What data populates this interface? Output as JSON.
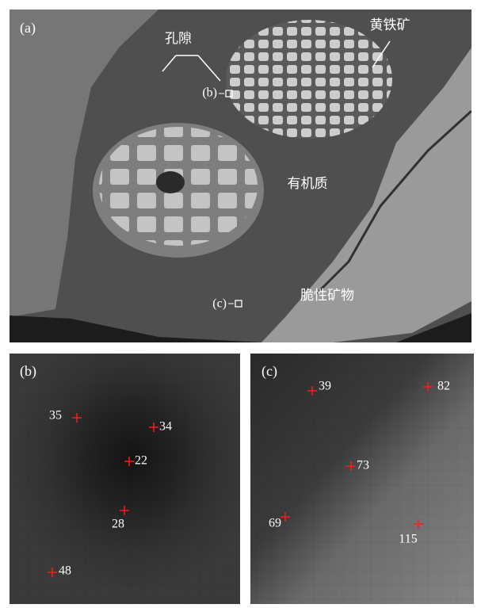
{
  "panels": [
    {
      "label": "(a)",
      "annotations": [
        "孔隙",
        "黄铁矿",
        "有机质",
        "脆性矿物",
        "(b)",
        "(c)"
      ]
    },
    {
      "label": "(b)",
      "points": [
        35,
        34,
        22,
        28,
        48
      ]
    },
    {
      "label": "(c)",
      "points": [
        39,
        82,
        73,
        69,
        115
      ]
    }
  ]
}
